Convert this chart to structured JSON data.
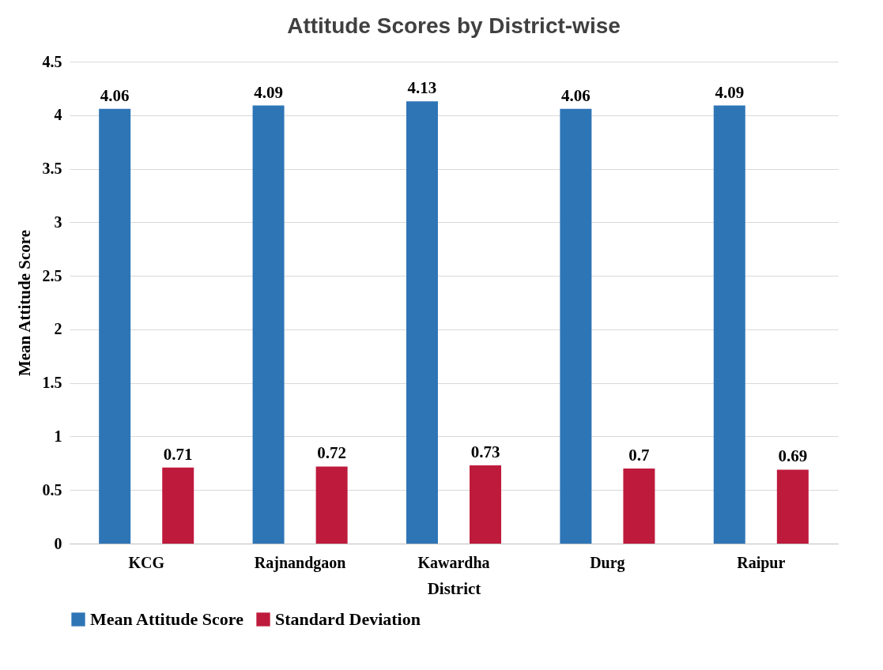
{
  "chart_data": {
    "type": "bar",
    "title": "Attitude Scores by District-wise",
    "xlabel": "District",
    "ylabel": "Mean Attitude Score",
    "categories": [
      "KCG",
      "Rajnandgaon",
      "Kawardha",
      "Durg",
      "Raipur"
    ],
    "series": [
      {
        "name": "Mean Attitude Score",
        "color": "#2e75b6",
        "values": [
          4.06,
          4.09,
          4.13,
          4.06,
          4.09
        ]
      },
      {
        "name": "Standard Deviation",
        "color": "#be1a3c",
        "values": [
          0.71,
          0.72,
          0.73,
          0.7,
          0.69
        ]
      }
    ],
    "ylim": [
      0,
      4.5
    ],
    "yticks": [
      0,
      0.5,
      1,
      1.5,
      2,
      2.5,
      3,
      3.5,
      4,
      4.5
    ],
    "grid": "y",
    "legend": "bottom",
    "data_labels": true
  }
}
